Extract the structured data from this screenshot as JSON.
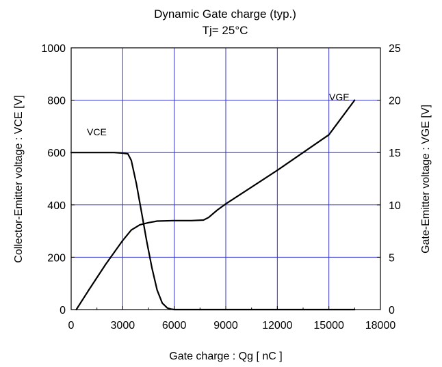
{
  "chart_data": {
    "type": "line",
    "title": "Dynamic Gate charge  (typ.)",
    "subtitle": "Tj= 25°C",
    "xlabel": "Gate charge : Qg [ nC ]",
    "ylabel_left": "Collector-Emitter voltage : VCE [V]",
    "ylabel_right": "Gate-Emitter voltage : VGE [V]",
    "xlim": [
      0,
      18000
    ],
    "ylim_left": [
      0,
      1000
    ],
    "ylim_right": [
      0,
      25
    ],
    "x_ticks": [
      "0",
      "3000",
      "6000",
      "9000",
      "12000",
      "15000",
      "18000"
    ],
    "y_left_ticks": [
      "0",
      "200",
      "400",
      "600",
      "800",
      "1000"
    ],
    "y_right_ticks": [
      "0",
      "5",
      "10",
      "15",
      "20",
      "25"
    ],
    "grid": true,
    "grid_color": "#3333cc",
    "line_color": "#000000",
    "series": [
      {
        "name": "VCE",
        "axis": "left",
        "x": [
          0,
          2500,
          3000,
          3300,
          3500,
          3800,
          4100,
          4400,
          4700,
          5000,
          5300,
          5600,
          5800,
          6000,
          9000,
          16500
        ],
        "y": [
          600,
          600,
          598,
          595,
          570,
          480,
          370,
          260,
          160,
          75,
          25,
          6,
          2,
          0,
          0,
          0
        ]
      },
      {
        "name": "VGE",
        "axis": "right",
        "x": [
          300,
          1000,
          2000,
          3000,
          3500,
          4000,
          4500,
          5000,
          6000,
          7000,
          7700,
          8000,
          8500,
          9000,
          12000,
          15000,
          16500
        ],
        "y": [
          0,
          1.8,
          4.3,
          6.6,
          7.6,
          8.1,
          8.3,
          8.45,
          8.5,
          8.5,
          8.55,
          8.8,
          9.5,
          10.1,
          13.3,
          16.7,
          20.0
        ]
      }
    ]
  }
}
